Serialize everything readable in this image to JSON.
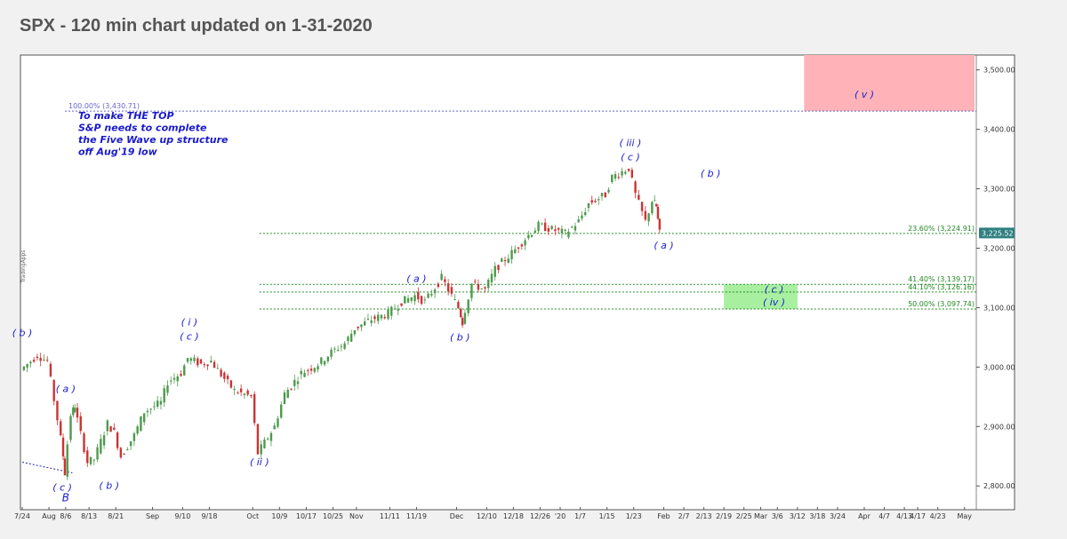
{
  "page": {
    "title": "SPX - 120 min chart updated on 1-31-2020"
  },
  "chart_data": {
    "type": "candlestick",
    "title": "SPX - 120 min chart updated on 1-31-2020",
    "ylim": [
      2760,
      3525
    ],
    "y_ticks": [
      "2,800.00",
      "2,900.00",
      "3,000.00",
      "3,100.00",
      "3,200.00",
      "3,300.00",
      "3,400.00",
      "3,500.00"
    ],
    "y_tick_values": [
      2800,
      2900,
      3000,
      3100,
      3200,
      3300,
      3400,
      3500
    ],
    "x_ticks": [
      "7/24",
      "Aug",
      "8/6",
      "8/13",
      "8/21",
      "Sep",
      "9/10",
      "9/18",
      "Oct",
      "10/9",
      "10/17",
      "10/25",
      "Nov",
      "11/11",
      "11/19",
      "Dec",
      "12/10",
      "12/18",
      "12/26",
      "'20",
      "1/7",
      "1/15",
      "1/23",
      "Feb",
      "2/7",
      "2/13",
      "2/19",
      "2/25",
      "Mar",
      "3/6",
      "3/12",
      "3/18",
      "3/24",
      "Apr",
      "4/7",
      "4/13",
      "4/17",
      "4/23",
      "May"
    ],
    "last_price": "3,225.52",
    "side_label": "TradingApps",
    "price_path": [
      [
        "7/24",
        2995
      ],
      [
        "7/29",
        3020
      ],
      [
        "8/1",
        3010
      ],
      [
        "8/5",
        2880
      ],
      [
        "8/6",
        2822
      ],
      [
        "8/8",
        2920
      ],
      [
        "8/9",
        2935
      ],
      [
        "8/13",
        2840
      ],
      [
        "8/15",
        2845
      ],
      [
        "8/19",
        2905
      ],
      [
        "8/21",
        2890
      ],
      [
        "8/23",
        2850
      ],
      [
        "8/27",
        2885
      ],
      [
        "8/30",
        2925
      ],
      [
        "9/4",
        2940
      ],
      [
        "9/6",
        2975
      ],
      [
        "9/10",
        2990
      ],
      [
        "9/12",
        3015
      ],
      [
        "9/16",
        3005
      ],
      [
        "9/19",
        3010
      ],
      [
        "9/23",
        2980
      ],
      [
        "9/26",
        2960
      ],
      [
        "10/1",
        2950
      ],
      [
        "10/3",
        2855
      ],
      [
        "10/8",
        2900
      ],
      [
        "10/11",
        2955
      ],
      [
        "10/16",
        2990
      ],
      [
        "10/21",
        3005
      ],
      [
        "10/25",
        3025
      ],
      [
        "10/29",
        3040
      ],
      [
        "11/1",
        3065
      ],
      [
        "11/6",
        3080
      ],
      [
        "11/11",
        3090
      ],
      [
        "11/15",
        3110
      ],
      [
        "11/19",
        3120
      ],
      [
        "11/22",
        3110
      ],
      [
        "11/27",
        3150
      ],
      [
        "12/2",
        3100
      ],
      [
        "12/3",
        3075
      ],
      [
        "12/6",
        3140
      ],
      [
        "12/10",
        3130
      ],
      [
        "12/13",
        3165
      ],
      [
        "12/18",
        3192
      ],
      [
        "12/23",
        3222
      ],
      [
        "12/26",
        3238
      ],
      [
        "12/31",
        3230
      ],
      [
        "1/3",
        3225
      ],
      [
        "1/7",
        3245
      ],
      [
        "1/10",
        3275
      ],
      [
        "1/15",
        3290
      ],
      [
        "1/17",
        3320
      ],
      [
        "1/22",
        3335
      ],
      [
        "1/24",
        3290
      ],
      [
        "1/27",
        3245
      ],
      [
        "1/29",
        3280
      ],
      [
        "1/30",
        3270
      ],
      [
        "1/31",
        3225
      ]
    ],
    "horizontal_levels": [
      {
        "label": "100.00% (3,430.71)",
        "value": 3430.71,
        "color": "#6666cc"
      },
      {
        "label": "23.60% (3,224.91)",
        "value": 3224.91,
        "color": "#228822"
      },
      {
        "label": "41.40% (3,139.17)",
        "value": 3139.17,
        "color": "#228822"
      },
      {
        "label": "44.10% (3,126.16)",
        "value": 3126.16,
        "color": "#228822"
      },
      {
        "label": "50.00% (3,097.74)",
        "value": 3097.74,
        "color": "#228822"
      }
    ],
    "zones": [
      {
        "name": "target-zone-v",
        "x_from": "3/14",
        "x_to": "5/4",
        "y_from": 3430.71,
        "y_to": 3525,
        "color": "#ffb3b8"
      },
      {
        "name": "target-zone-iv",
        "x_from": "2/19",
        "x_to": "3/12",
        "y_from": 3097.74,
        "y_to": 3139.17,
        "color": "#a8f0a0"
      }
    ],
    "annotation_note": [
      "To make THE TOP",
      "S&P needs to complete",
      "the Five Wave up structure",
      "off Aug'19 low"
    ],
    "wave_labels": [
      {
        "text": "( b )",
        "at": "7/24",
        "y": 3052
      },
      {
        "text": "( a )",
        "at": "8/6",
        "y": 2958
      },
      {
        "text": "( c )",
        "at": "8/5",
        "y": 2792
      },
      {
        "text": "B",
        "at": "8/6",
        "y": 2774
      },
      {
        "text": "( b )",
        "at": "8/19",
        "y": 2795
      },
      {
        "text": "( i )",
        "at": "9/12",
        "y": 3070
      },
      {
        "text": "( c )",
        "at": "9/12",
        "y": 3046
      },
      {
        "text": "( ii )",
        "at": "10/3",
        "y": 2835
      },
      {
        "text": "( a )",
        "at": "11/19",
        "y": 3143
      },
      {
        "text": "( b )",
        "at": "12/2",
        "y": 3045
      },
      {
        "text": "( iii )",
        "at": "1/22",
        "y": 3372
      },
      {
        "text": "( c )",
        "at": "1/22",
        "y": 3348
      },
      {
        "text": "( b )",
        "at": "2/15",
        "y": 3320
      },
      {
        "text": "( a )",
        "at": "2/1",
        "y": 3199
      },
      {
        "text": "( c )",
        "at": "3/5",
        "y": 3125
      },
      {
        "text": "( iv )",
        "at": "3/5",
        "y": 3104
      },
      {
        "text": "( v )",
        "at": "4/1",
        "y": 3453
      }
    ],
    "colors": {
      "up": "#4d9a4d",
      "down": "#cc3333",
      "wave_label": "#1a1acc",
      "fib_line": "#228822",
      "top_line": "#6666cc",
      "last_price_badge": "#2f7f7f"
    }
  }
}
